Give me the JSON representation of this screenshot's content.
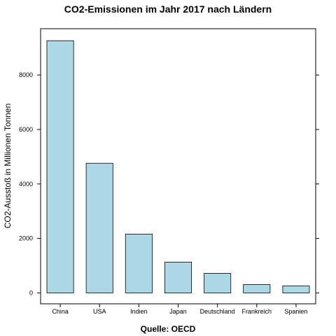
{
  "chart_data": {
    "type": "bar",
    "title": "CO2-Emissionen im Jahr 2017 nach Ländern",
    "xlabel": "Quelle: OECD",
    "ylabel": "CO2-Ausstoß in Millionen Tonnen",
    "categories": [
      "China",
      "USA",
      "Indien",
      "Japan",
      "Deutschland",
      "Frankreich",
      "Spanien"
    ],
    "values": [
      9260,
      4760,
      2160,
      1130,
      720,
      310,
      260
    ],
    "ylim": [
      -400,
      9700
    ],
    "yticks": [
      0,
      2000,
      4000,
      6000,
      8000
    ],
    "bar_color": "#add8e6",
    "grid": false
  }
}
